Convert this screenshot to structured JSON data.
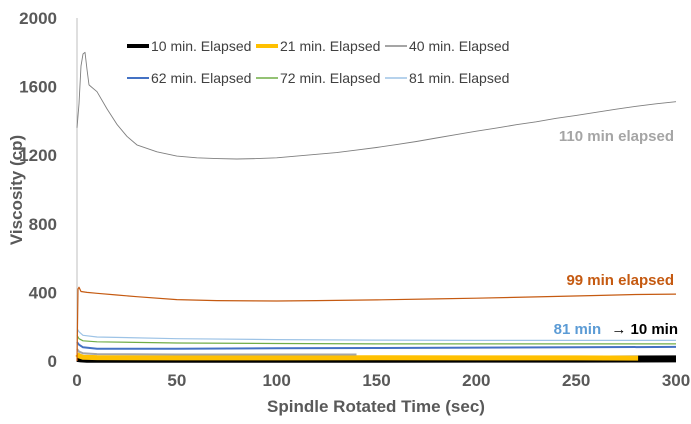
{
  "chart_data": {
    "type": "line",
    "title": "",
    "xlabel": "Spindle Rotated Time (sec)",
    "ylabel": "Viscosity (cp)",
    "xlim": [
      0,
      300
    ],
    "ylim": [
      0,
      2000
    ],
    "x_ticks": [
      "0",
      "50",
      "100",
      "150",
      "200",
      "250",
      "300"
    ],
    "y_ticks": [
      "0",
      "400",
      "800",
      "1200",
      "1600",
      "2000"
    ],
    "grid": false,
    "legend_position": "top",
    "series": [
      {
        "name": "10 min. Elapsed",
        "color": "#000000",
        "x": [
          0,
          2,
          5,
          20,
          50,
          100,
          150,
          200,
          250,
          300
        ],
        "y": [
          15,
          12,
          10,
          10,
          10,
          10,
          10,
          11,
          11,
          12
        ]
      },
      {
        "name": "21 min. Elapsed",
        "color": "#FFC000",
        "x": [
          0,
          1,
          3,
          10,
          50,
          100,
          150,
          200,
          250,
          281
        ],
        "y": [
          40,
          30,
          22,
          20,
          18,
          18,
          19,
          18,
          18,
          17
        ]
      },
      {
        "name": "40 min. Elapsed",
        "color": "#A5A5A5",
        "x": [
          0,
          1,
          3,
          10,
          50,
          100,
          140
        ],
        "y": [
          70,
          55,
          45,
          40,
          38,
          38,
          38
        ]
      },
      {
        "name": "62 min. Elapsed",
        "color": "#4472C4",
        "x": [
          0,
          1,
          3,
          10,
          50,
          100,
          150,
          200,
          250,
          300
        ],
        "y": [
          110,
          95,
          80,
          72,
          72,
          74,
          76,
          78,
          80,
          82
        ]
      },
      {
        "name": "72 min. Elapsed",
        "color": "#70AD47",
        "x": [
          0,
          1,
          3,
          10,
          50,
          100,
          150,
          200,
          250,
          300
        ],
        "y": [
          150,
          130,
          118,
          112,
          105,
          102,
          100,
          100,
          100,
          100
        ]
      },
      {
        "name": "81 min. Elapsed",
        "color": "#9DC3E6",
        "x": [
          0,
          1,
          3,
          10,
          50,
          100,
          150,
          200,
          250,
          300
        ],
        "y": [
          190,
          170,
          150,
          140,
          130,
          125,
          122,
          120,
          120,
          120
        ]
      },
      {
        "name": "",
        "color": "#C55A11",
        "x": [
          0,
          0.5,
          1,
          2,
          5,
          10,
          20,
          30,
          50,
          70,
          100,
          120,
          150,
          180,
          200,
          230,
          260,
          280,
          300
        ],
        "y": [
          0,
          420,
          430,
          405,
          400,
          395,
          385,
          375,
          358,
          352,
          350,
          352,
          356,
          362,
          366,
          374,
          382,
          388,
          390
        ]
      },
      {
        "name": "",
        "color": "#7F7F7F",
        "x": [
          0,
          1,
          2,
          3,
          4,
          5,
          6,
          7,
          10,
          15,
          20,
          25,
          30,
          40,
          50,
          60,
          70,
          80,
          90,
          100,
          110,
          120,
          130,
          140,
          150,
          160,
          170,
          180,
          190,
          200,
          210,
          220,
          230,
          240,
          250,
          260,
          270,
          280,
          290,
          300
        ],
        "y": [
          1360,
          1500,
          1720,
          1790,
          1800,
          1700,
          1610,
          1600,
          1570,
          1470,
          1380,
          1310,
          1260,
          1220,
          1195,
          1185,
          1180,
          1178,
          1180,
          1185,
          1195,
          1205,
          1215,
          1230,
          1245,
          1262,
          1280,
          1300,
          1320,
          1340,
          1358,
          1378,
          1395,
          1415,
          1432,
          1450,
          1468,
          1485,
          1500,
          1512
        ]
      }
    ],
    "annotations": [
      {
        "text": "110 min elapsed",
        "color": "#A5A5A5"
      },
      {
        "text": "99 min elapsed",
        "color": "#C55A11"
      },
      {
        "text_a": "81 min",
        "text_b": "→ 10 min",
        "color_a": "#5B9BD5",
        "color_b": "#000000"
      }
    ]
  }
}
